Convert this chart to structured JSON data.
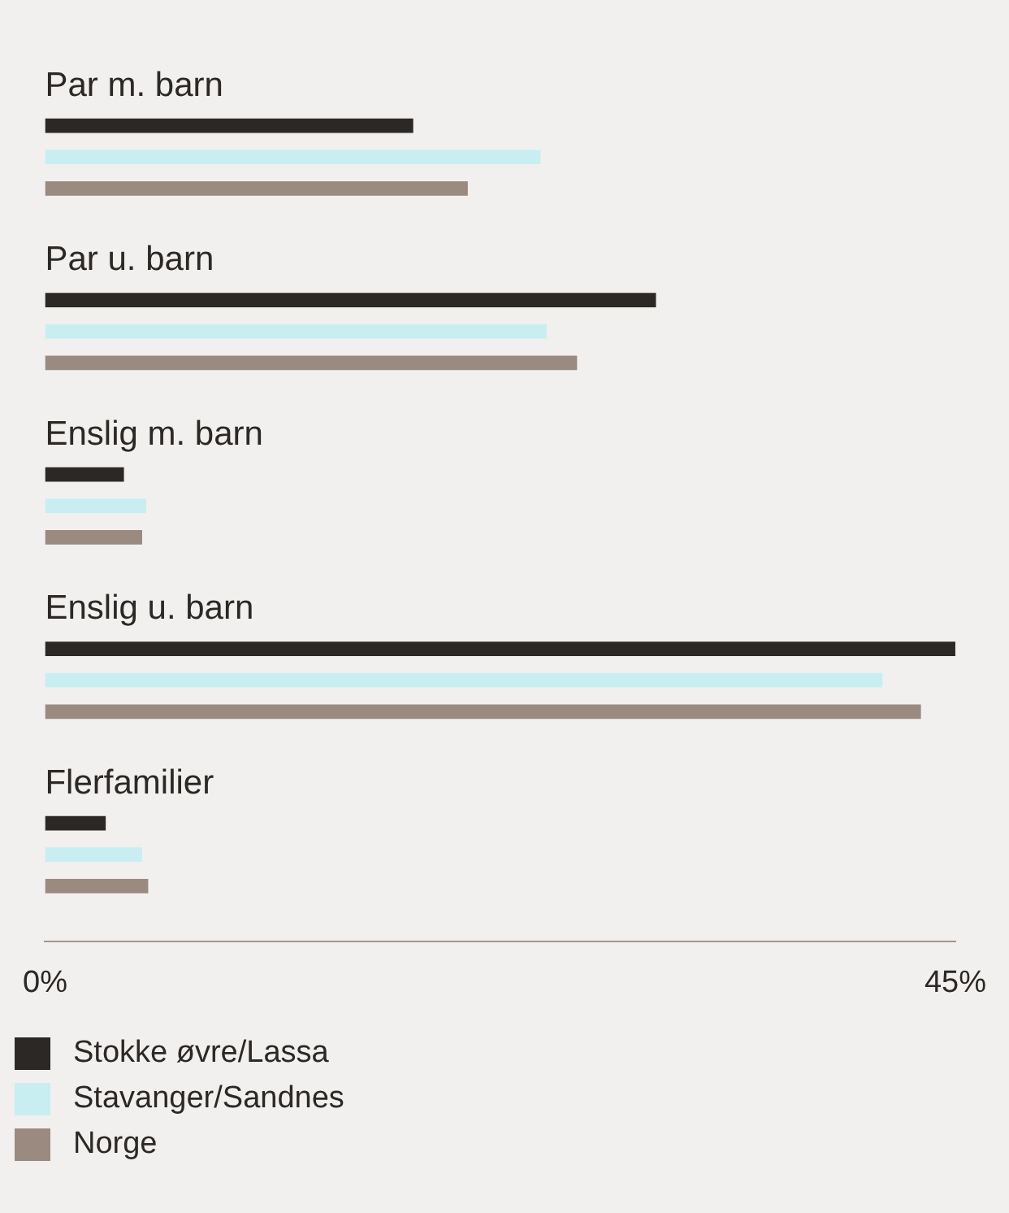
{
  "chart_data": {
    "type": "bar",
    "orientation": "horizontal",
    "categories": [
      "Par m. barn",
      "Par u. barn",
      "Enslig m. barn",
      "Enslig u. barn",
      "Flerfamilier"
    ],
    "series": [
      {
        "name": "Stokke øvre/Lassa",
        "color": "#2b2825",
        "values": [
          18.2,
          30.2,
          3.9,
          45.0,
          3.0
        ]
      },
      {
        "name": "Stavanger/Sandnes",
        "color": "#c8eef2",
        "values": [
          24.5,
          24.8,
          5.0,
          41.4,
          4.8
        ]
      },
      {
        "name": "Norge",
        "color": "#9a8a80",
        "values": [
          20.9,
          26.3,
          4.8,
          43.3,
          5.1
        ]
      }
    ],
    "xlim": [
      0,
      45
    ],
    "xticks": [
      {
        "value": 0,
        "label": "0%"
      },
      {
        "value": 45,
        "label": "45%"
      }
    ],
    "grid": false,
    "legend": "bottom left"
  }
}
